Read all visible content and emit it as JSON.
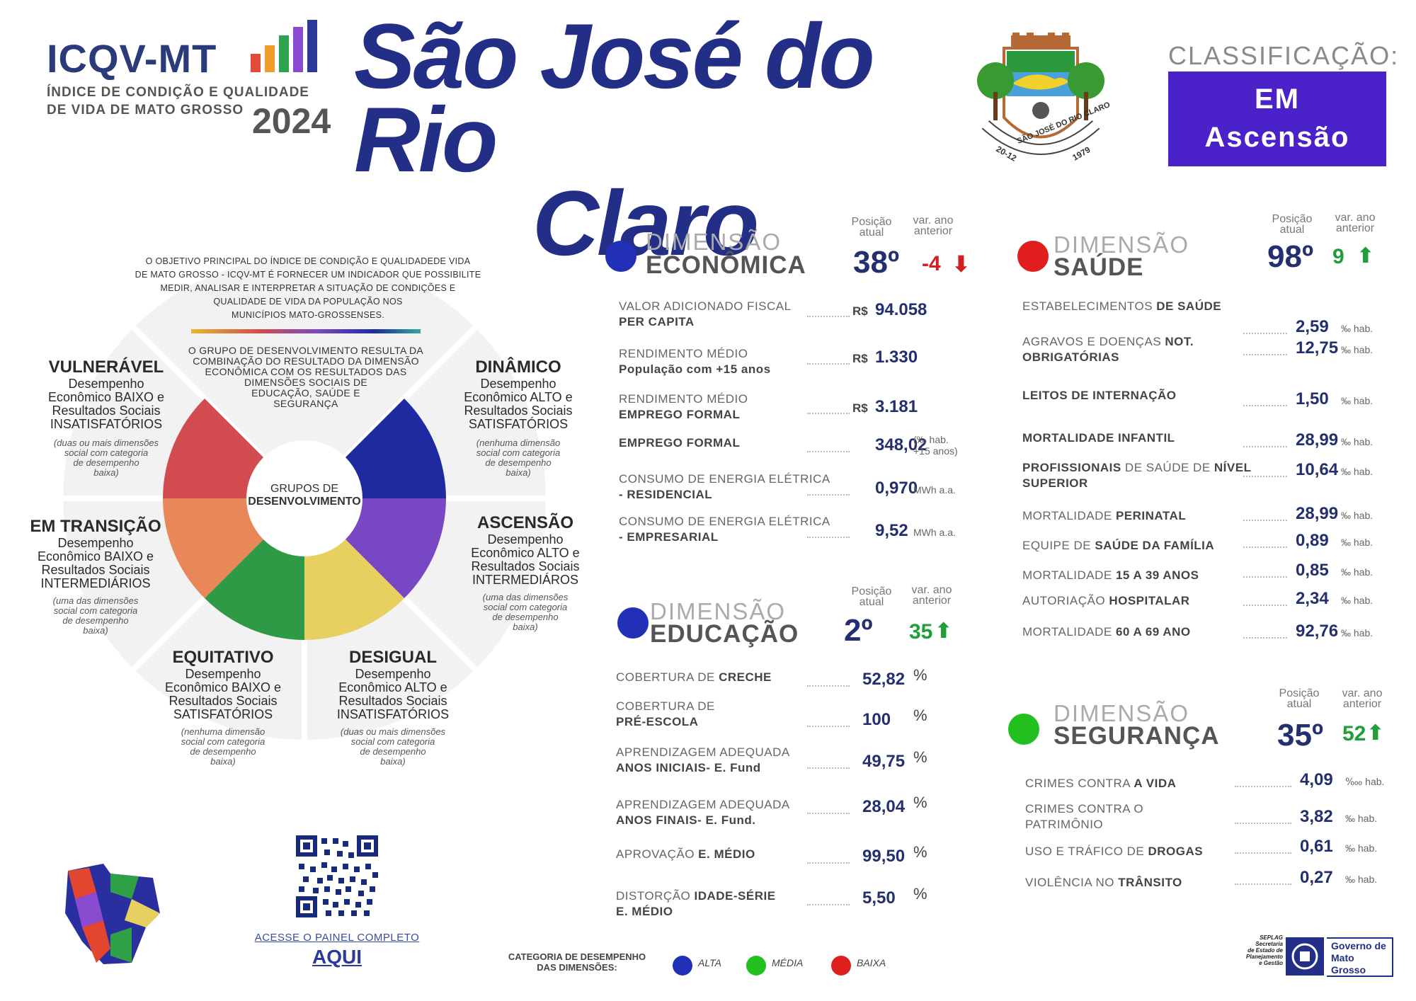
{
  "header": {
    "logo_title": "ICQV-MT",
    "logo_sub_1": "ÍNDICE DE CONDIÇÃO E QUALIDADE",
    "logo_sub_2": "DE VIDA DE MATO GROSSO",
    "logo_year": "2024",
    "city_line1": "São José do Rio",
    "city_line2": "Claro",
    "coat_text": "SÃO JOSÉ DO RIO CLARO",
    "coat_date_left": "20-12",
    "coat_date_right": "1979",
    "class_label": "CLASSIFICAÇÃO:",
    "class_value_1": "EM",
    "class_value_2": "Ascensão"
  },
  "wheel": {
    "intro_1": "O OBJETIVO PRINCIPAL DO ÍNDICE DE CONDIÇÃO E QUALIDADEDE VIDA",
    "intro_2": "DE MATO GROSSO -  ICQV-MT É FORNECER UM INDICADOR QUE POSSIBILITE",
    "intro_3": "MEDIR, ANALISAR E INTERPRETAR A SITUAÇÃO DE CONDIÇÕES E",
    "intro_4": "QUALIDADE DE VIDA DA POPULAÇÃO NOS",
    "intro_5": "MUNICÍPIOS MATO-GROSSENSES.",
    "group_1": "O GRUPO DE DESENVOLVIMENTO RESULTA DA",
    "group_2": "COMBINAÇÃO DO RESULTADO DA DIMENSÃO",
    "group_3": "ECONÔMICA  COM OS RESULTADOS DAS",
    "group_4": "DIMENSÕES SOCIAIS DE",
    "group_5": "EDUCAÇÃO, SAÚDE E",
    "group_6": "SEGURANÇA",
    "center_1": "GRUPOS DE",
    "center_2": "DESENVOLVIMENTO",
    "segments": [
      {
        "title": "VULNERÁVEL",
        "l1": "Desempenho",
        "l2": "Econômico BAIXO e",
        "l3": "Resultados Sociais",
        "l4": "INSATISFATÓRIOS",
        "n1": "(duas ou mais dimensões",
        "n2": "social com categoria",
        "n3": "de desempenho",
        "n4": "baixa)"
      },
      {
        "title": "DINÂMICO",
        "l1": "Desempenho",
        "l2": "Econômico ALTO e",
        "l3": "Resultados Sociais",
        "l4": "SATISFATÓRIOS",
        "n1": "(nenhuma dimensão",
        "n2": "social com categoria",
        "n3": "de desempenho",
        "n4": "baixa)"
      },
      {
        "title": "EM TRANSIÇÃO",
        "l1": "Desempenho",
        "l2": "Econômico BAIXO e",
        "l3": "Resultados Sociais",
        "l4": "INTERMEDIÁRIOS",
        "n1": "(uma das dimensões",
        "n2": "social com categoria",
        "n3": "de desempenho",
        "n4": "baixa)"
      },
      {
        "title": "ASCENSÃO",
        "l1": "Desempenho",
        "l2": "Econômico ALTO e",
        "l3": "Resultados Sociais",
        "l4": "INTERMEDIÁROS",
        "n1": "(uma das dimensões",
        "n2": "social com categoria",
        "n3": "de desempenho",
        "n4": "baixa)"
      },
      {
        "title": "EQUITATIVO",
        "l1": "Desempenho",
        "l2": "Econômico BAIXO e",
        "l3": "Resultados Sociais",
        "l4": "SATISFATÓRIOS",
        "n1": "(nenhuma dimensão",
        "n2": "social com categoria",
        "n3": "de desempenho",
        "n4": "baixa)"
      },
      {
        "title": "DESIGUAL",
        "l1": "Desempenho",
        "l2": "Econômico ALTO e",
        "l3": "Resultados Sociais",
        "l4": "INSATISFATÓRIOS",
        "n1": "(duas ou mais dimensões",
        "n2": "social com categoria",
        "n3": "de desempenho",
        "n4": "baixa)"
      }
    ]
  },
  "labels": {
    "dim_top": "DIMENSÃO",
    "pos_1": "Posição",
    "pos_2": "atual",
    "var_1": "var. ano",
    "var_2": "anterior"
  },
  "economica": {
    "name": "ECONÔMICA",
    "pos": "38º",
    "var": "-4",
    "color": "#2230b8",
    "rows": [
      {
        "a": "VALOR  ADICIONADO  FISCAL",
        "b": "PER CAPITA",
        "pre": "R$",
        "val": "94.058",
        "unit": ""
      },
      {
        "a": "RENDIMENTO MÉDIO",
        "b": "População com +15 anos",
        "pre": "R$",
        "val": "1.330",
        "unit": ""
      },
      {
        "a": "RENDIMENTO MÉDIO",
        "b": "EMPREGO FORMAL",
        "pre": "R$",
        "val": "3.181",
        "unit": ""
      },
      {
        "a": "",
        "b": "EMPREGO FORMAL",
        "pre": "",
        "val": "348,02",
        "unit": "(‰ hab.",
        "unit2": "+15 anos)"
      },
      {
        "a": "CONSUMO DE ENERGIA ELÉTRICA",
        "b": "- RESIDENCIAL",
        "pre": "",
        "val": "0,970",
        "unit": "MWh a.a."
      },
      {
        "a": "CONSUMO DE ENERGIA ELÉTRICA",
        "b": "- EMPRESARIAL",
        "pre": "",
        "val": "9,52",
        "unit": "MWh a.a."
      }
    ]
  },
  "educacao": {
    "name": "EDUCAÇÃO",
    "pos": "2º",
    "var": "35",
    "color": "#2230b8",
    "rows": [
      {
        "a": "COBERTURA DE ",
        "ab": "CRECHE",
        "b": "",
        "val": "52,82",
        "unit": "%"
      },
      {
        "a": "COBERTURA DE",
        "ab": "",
        "b": "PRÉ-ESCOLA",
        "val": "100",
        "unit": "%"
      },
      {
        "a": "APRENDIZAGEM ADEQUADA",
        "ab": "",
        "b": "ANOS INICIAIS- E. Fund",
        "val": "49,75",
        "unit": "%"
      },
      {
        "a": "APRENDIZAGEM ADEQUADA",
        "ab": "",
        "b": "ANOS FINAIS- E. Fund.",
        "val": "28,04",
        "unit": "%"
      },
      {
        "a": "APROVAÇÃO ",
        "ab": "E. MÉDIO",
        "b": "",
        "val": "99,50",
        "unit": "%"
      },
      {
        "a": "DISTORÇÃO ",
        "ab": "IDADE-SÉRIE",
        "b": "E. MÉDIO",
        "val": "5,50",
        "unit": "%"
      }
    ]
  },
  "saude": {
    "name": "SAÚDE",
    "pos": "98º",
    "var": "9",
    "color": "#e01e1e",
    "rows": [
      {
        "a": "ESTABELECIMENTOS ",
        "ab": "DE SAÚDE",
        "b": "",
        "val": "2,59",
        "unit": "‰ hab."
      },
      {
        "a": "AGRAVOS E DOENÇAS ",
        "ab": "NOT.",
        "b": "OBRIGATÓRIAS",
        "val": "12,75",
        "unit": "‰ hab."
      },
      {
        "a": "",
        "ab": "LEITOS DE INTERNAÇÃO",
        "b": "",
        "val": "1,50",
        "unit": "‰ hab."
      },
      {
        "a": "",
        "ab": "MORTALIDADE INFANTIL",
        "b": "",
        "val": "28,99",
        "unit": "‰ hab."
      },
      {
        "a": "",
        "ab": "PROFISSIONAIS",
        "a2": " DE SAÚDE DE ",
        "ab2": "NÍVEL",
        "b": "SUPERIOR",
        "val": "10,64",
        "unit": "‰ hab."
      },
      {
        "a": "MORTALIDADE ",
        "ab": "PERINATAL",
        "b": "",
        "val": "28,99",
        "unit": "‰ hab."
      },
      {
        "a": "EQUIPE DE ",
        "ab": "SAÚDE DA FAMÍLIA",
        "b": "",
        "val": "0,89",
        "unit": "‰ hab."
      },
      {
        "a": "MORTALIDADE ",
        "ab": "15 A 39 ANOS",
        "b": "",
        "val": "0,85",
        "unit": "‰ hab."
      },
      {
        "a": "AUTORIAÇÃO ",
        "ab": "HOSPITALAR",
        "b": "",
        "val": "2,34",
        "unit": "‰ hab."
      },
      {
        "a": "MORTALIDADE ",
        "ab": "60 A 69 ANO",
        "b": "",
        "val": "92,76",
        "unit": "‰ hab."
      }
    ]
  },
  "seguranca": {
    "name": "SEGURANÇA",
    "pos": "35º",
    "var": "52",
    "color": "#22c01e",
    "rows": [
      {
        "a": "CRIMES CONTRA ",
        "ab": "A VIDA",
        "b": "",
        "val": "4,09",
        "unit": "‱ hab."
      },
      {
        "a": "CRIMES CONTRA O",
        "ab": "",
        "b2": "PATRIMÔNIO",
        "val": "3,82",
        "unit": "‰ hab."
      },
      {
        "a": "USO E TRÁFICO DE ",
        "ab": "DROGAS",
        "b": "",
        "val": "0,61",
        "unit": "‰ hab."
      },
      {
        "a": "VIOLÊNCIA NO ",
        "ab": "TRÂNSITO",
        "b": "",
        "val": "0,27",
        "unit": "‰ hab."
      }
    ]
  },
  "footer": {
    "panel_link": "ACESSE O PAINEL COMPLETO",
    "panel_here": "AQUI",
    "legend_title_1": "CATEGORIA DE DESEMPENHO",
    "legend_title_2": "DAS DIMENSÕES:",
    "legend": [
      {
        "label": "ALTA",
        "color": "#2230b8"
      },
      {
        "label": "MÉDIA",
        "color": "#22c01e"
      },
      {
        "label": "BAIXA",
        "color": "#e01e1e"
      }
    ],
    "seplag_1": "SEPLAG",
    "seplag_2": "Secretaria",
    "seplag_3": "de Estado de",
    "seplag_4": "Planejamento",
    "seplag_5": "e Gestão",
    "gov_1": "Governo de",
    "gov_2": "Mato",
    "gov_3": "Grosso"
  },
  "colors": {
    "brand_blue": "#232f86",
    "class_purple": "#4b22c9",
    "down_red": "#d21f1f",
    "up_green": "#1f9e3a"
  }
}
